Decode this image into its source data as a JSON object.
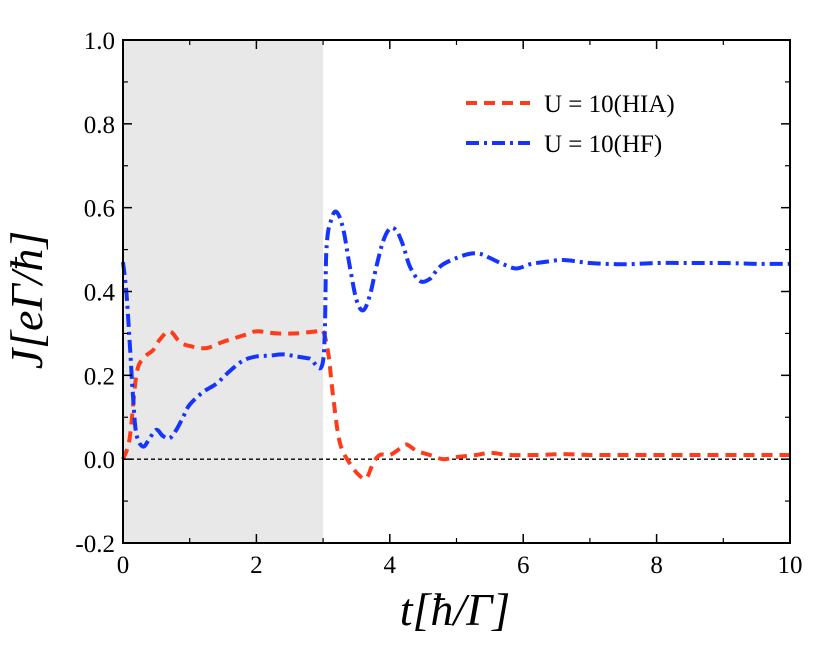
{
  "chart_data": {
    "type": "line",
    "xlabel": "t[ħ/Γ]",
    "ylabel": "J[eΓ/ħ]",
    "xlim": [
      0,
      10
    ],
    "ylim": [
      -0.2,
      1.0
    ],
    "x_ticks": [
      0,
      2,
      4,
      6,
      8,
      10
    ],
    "y_ticks": [
      -0.2,
      0.0,
      0.2,
      0.4,
      0.6,
      0.8,
      1.0
    ],
    "x_tick_labels": [
      "0",
      "2",
      "4",
      "6",
      "8",
      "10"
    ],
    "y_tick_labels": [
      "-0.2",
      "0.0",
      "0.2",
      "0.4",
      "0.6",
      "0.8",
      "1.0"
    ],
    "shaded_region": {
      "x": [
        0,
        3
      ],
      "color": "#e8e8e8"
    },
    "reference_line": {
      "y": 0.0,
      "style": "dashed",
      "color": "#000000"
    },
    "legend_position": "top-right",
    "series": [
      {
        "name": "U = 10(HIA)",
        "color": "#ff3b1a",
        "style": "dashed",
        "x": [
          0,
          0.1,
          0.2,
          0.3,
          0.45,
          0.55,
          0.7,
          0.85,
          1.0,
          1.25,
          1.5,
          1.8,
          2.0,
          2.3,
          2.6,
          2.9,
          3.0,
          3.08,
          3.15,
          3.25,
          3.4,
          3.55,
          3.65,
          3.75,
          3.85,
          4.0,
          4.15,
          4.25,
          4.4,
          4.6,
          4.8,
          5.0,
          5.3,
          5.5,
          5.8,
          6.2,
          6.6,
          7.0,
          7.5,
          8.0,
          8.5,
          9.0,
          9.5,
          10.0
        ],
        "y": [
          0.0,
          0.05,
          0.2,
          0.24,
          0.26,
          0.285,
          0.305,
          0.28,
          0.27,
          0.265,
          0.28,
          0.295,
          0.305,
          0.3,
          0.3,
          0.305,
          0.305,
          0.25,
          0.15,
          0.04,
          -0.01,
          -0.04,
          -0.045,
          -0.01,
          0.01,
          0.01,
          0.025,
          0.035,
          0.02,
          0.01,
          0.0,
          0.005,
          0.01,
          0.015,
          0.01,
          0.01,
          0.012,
          0.01,
          0.01,
          0.01,
          0.01,
          0.01,
          0.01,
          0.01
        ]
      },
      {
        "name": "U = 10(HF)",
        "color": "#1535ff",
        "style": "dashdot",
        "x": [
          0,
          0.05,
          0.1,
          0.15,
          0.2,
          0.3,
          0.4,
          0.5,
          0.6,
          0.7,
          0.8,
          0.9,
          1.0,
          1.2,
          1.4,
          1.6,
          1.8,
          2.0,
          2.2,
          2.4,
          2.6,
          2.8,
          3.0,
          3.05,
          3.12,
          3.2,
          3.3,
          3.4,
          3.5,
          3.6,
          3.7,
          3.8,
          3.9,
          4.0,
          4.1,
          4.2,
          4.3,
          4.45,
          4.6,
          4.7,
          4.8,
          5.0,
          5.2,
          5.35,
          5.5,
          5.7,
          5.9,
          6.1,
          6.3,
          6.6,
          7.0,
          7.5,
          8.0,
          8.5,
          9.0,
          9.5,
          10.0
        ],
        "y": [
          0.47,
          0.4,
          0.28,
          0.15,
          0.06,
          0.03,
          0.05,
          0.07,
          0.055,
          0.05,
          0.07,
          0.1,
          0.13,
          0.16,
          0.18,
          0.21,
          0.235,
          0.245,
          0.247,
          0.25,
          0.245,
          0.24,
          0.235,
          0.5,
          0.57,
          0.59,
          0.55,
          0.46,
          0.38,
          0.355,
          0.39,
          0.46,
          0.52,
          0.55,
          0.545,
          0.51,
          0.46,
          0.425,
          0.43,
          0.45,
          0.465,
          0.48,
          0.49,
          0.49,
          0.48,
          0.465,
          0.455,
          0.465,
          0.47,
          0.475,
          0.468,
          0.465,
          0.468,
          0.468,
          0.468,
          0.466,
          0.466
        ]
      }
    ]
  }
}
